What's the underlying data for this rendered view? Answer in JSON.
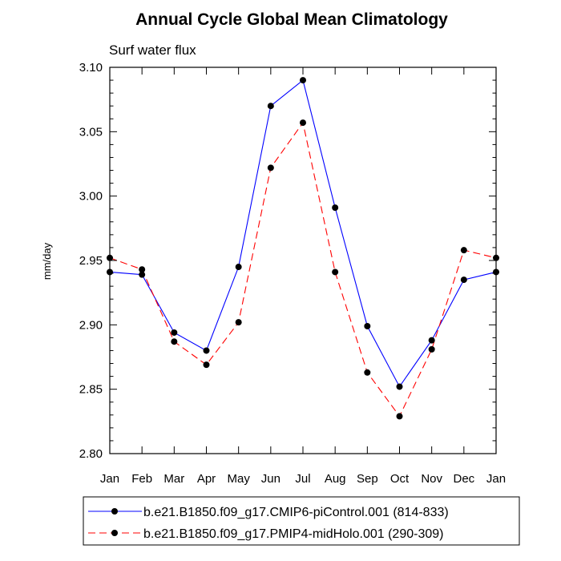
{
  "chart_data": {
    "type": "line",
    "title": "Annual Cycle Global Mean Climatology",
    "subtitle": "Surf water flux",
    "xlabel": "",
    "ylabel": "mm/day",
    "categories": [
      "Jan",
      "Feb",
      "Mar",
      "Apr",
      "May",
      "Jun",
      "Jul",
      "Aug",
      "Sep",
      "Oct",
      "Nov",
      "Dec",
      "Jan"
    ],
    "ylim": [
      2.8,
      3.1
    ],
    "yticks": [
      2.8,
      2.85,
      2.9,
      2.95,
      3.0,
      3.05,
      3.1
    ],
    "ytick_labels": [
      "2.80",
      "2.85",
      "2.90",
      "2.95",
      "3.00",
      "3.05",
      "3.10"
    ],
    "series": [
      {
        "name": "b.e21.B1850.f09_g17.CMIP6-piControl.001 (814-833)",
        "color": "#0000ff",
        "dash": "solid",
        "values": [
          2.941,
          2.939,
          2.894,
          2.88,
          2.945,
          3.07,
          3.09,
          2.991,
          2.899,
          2.852,
          2.888,
          2.935,
          2.941
        ]
      },
      {
        "name": "b.e21.B1850.f09_g17.PMIP4-midHolo.001 (290-309)",
        "color": "#ff0000",
        "dash": "dashed",
        "values": [
          2.952,
          2.943,
          2.887,
          2.869,
          2.902,
          3.022,
          3.057,
          2.941,
          2.863,
          2.829,
          2.881,
          2.958,
          2.952
        ]
      }
    ],
    "legend_position": "bottom"
  }
}
